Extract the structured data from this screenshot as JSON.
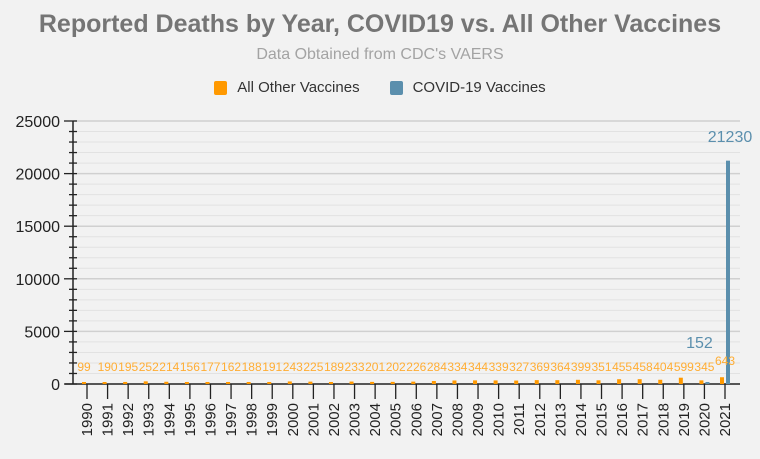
{
  "chart_data": {
    "type": "bar",
    "title": "Reported Deaths by Year, COVID19 vs. All Other Vaccines",
    "subtitle": "Data Obtained from CDC's VAERS",
    "xlabel": "",
    "ylabel": "",
    "ylim": [
      0,
      25000
    ],
    "yticks": [
      0,
      5000,
      10000,
      15000,
      20000,
      25000
    ],
    "minor_tick_step": 1000,
    "grid": true,
    "legend_position": "top-center",
    "categories": [
      "1990",
      "1991",
      "1992",
      "1993",
      "1994",
      "1995",
      "1996",
      "1997",
      "1998",
      "1999",
      "2000",
      "2001",
      "2002",
      "2003",
      "2004",
      "2005",
      "2006",
      "2007",
      "2008",
      "2009",
      "2010",
      "2011",
      "2012",
      "2013",
      "2014",
      "2015",
      "2016",
      "2017",
      "2018",
      "2019",
      "2020",
      "2021"
    ],
    "series": [
      {
        "name": "All Other Vaccines",
        "color": "#ff9900",
        "label_color": "#ffad33",
        "values": [
          99,
          190,
          195,
          252,
          214,
          156,
          177,
          162,
          188,
          191,
          243,
          225,
          189,
          233,
          201,
          202,
          226,
          284,
          334,
          344,
          339,
          327,
          369,
          364,
          399,
          351,
          455,
          458,
          404,
          599,
          345,
          643
        ]
      },
      {
        "name": "COVID-19 Vaccines",
        "color": "#5b8fad",
        "label_color": "#5b8fad",
        "values": [
          null,
          null,
          null,
          null,
          null,
          null,
          null,
          null,
          null,
          null,
          null,
          null,
          null,
          null,
          null,
          null,
          null,
          null,
          null,
          null,
          null,
          null,
          null,
          null,
          null,
          null,
          null,
          null,
          null,
          null,
          152,
          21230
        ]
      }
    ]
  }
}
